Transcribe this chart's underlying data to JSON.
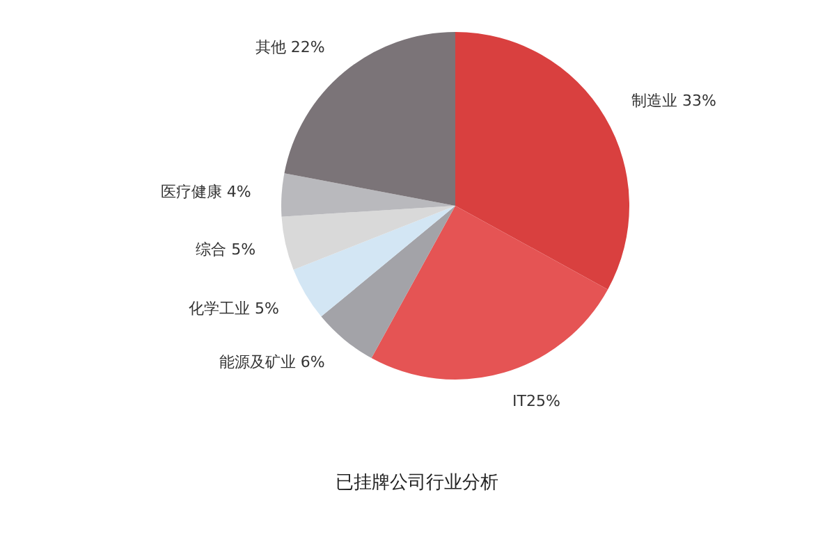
{
  "chart_data": {
    "type": "pie",
    "title": "已挂牌公司行业分析",
    "categories": [
      "制造业 33%",
      "IT25%",
      "能源及矿业 6%",
      "化学工业 5%",
      "综合 5%",
      "医疗健康 4%",
      "其他 22%"
    ],
    "values": [
      33,
      25,
      6,
      5,
      5,
      4,
      22
    ],
    "colors": [
      "#d9403f",
      "#e55454",
      "#a3a3a8",
      "#d3e6f4",
      "#d9d9d9",
      "#b9b9bd",
      "#7b7478"
    ],
    "legend": false
  }
}
